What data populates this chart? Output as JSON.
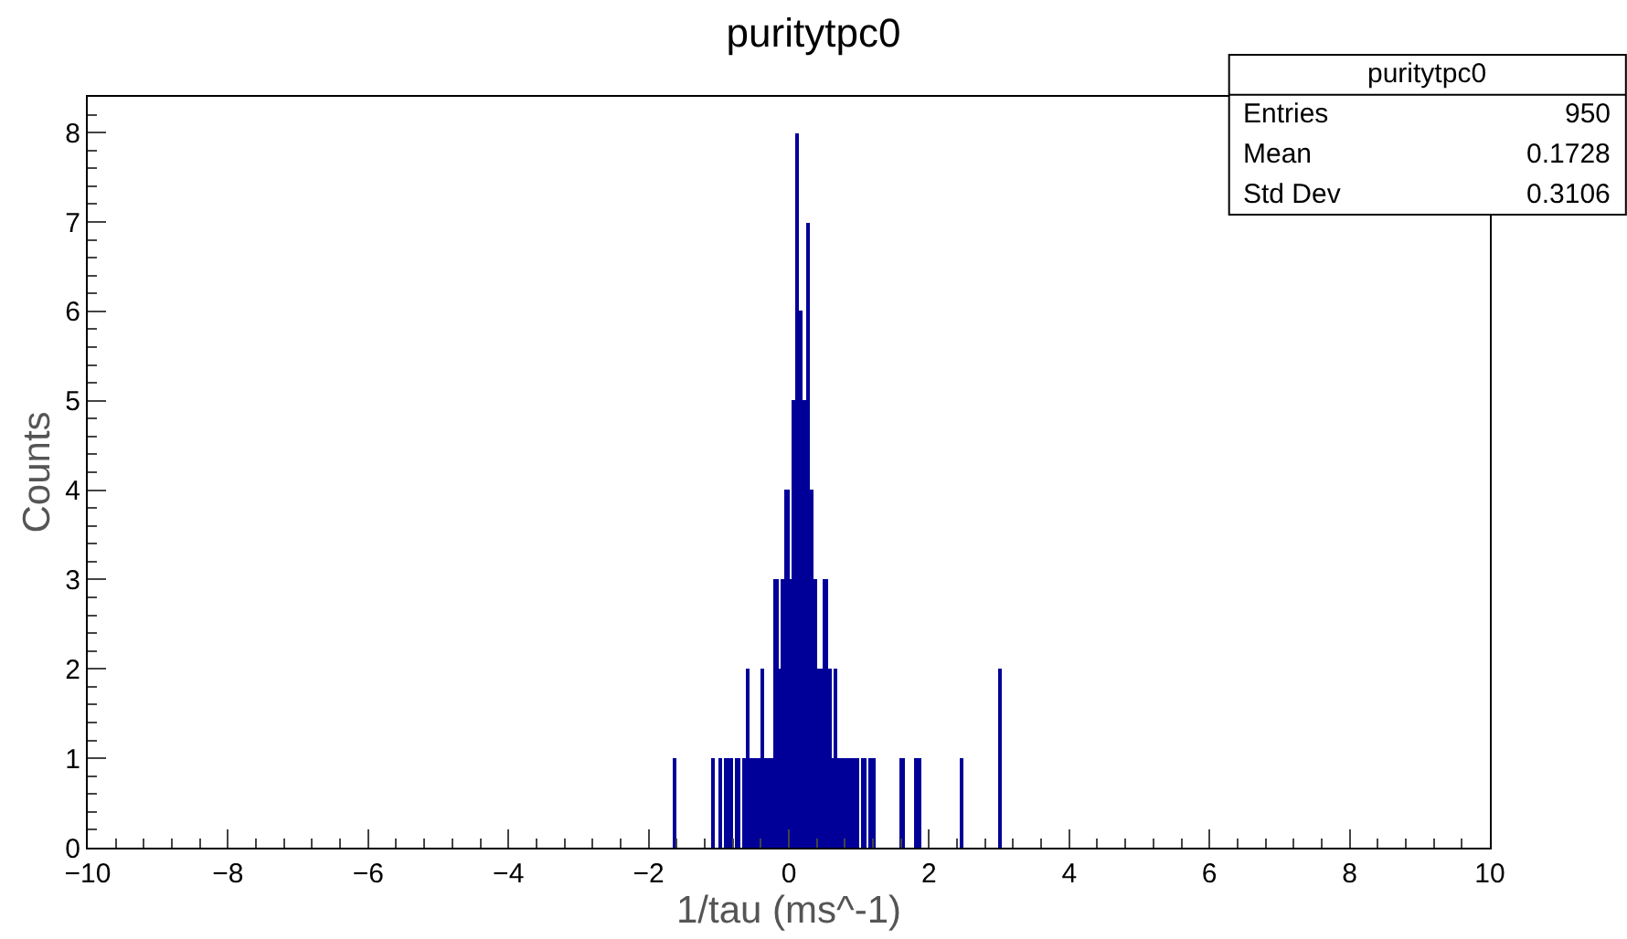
{
  "chart_data": {
    "type": "histogram",
    "title": "puritytpc0",
    "xlabel": "1/tau (ms^-1)",
    "ylabel": "Counts",
    "annotations": [
      "puritytpc0",
      "Entries",
      "950",
      "Mean",
      "0.1728",
      "Std Dev",
      "0.3106"
    ],
    "bins": [
      -1.65,
      -1.6,
      -1.1,
      -1.05,
      -1.0,
      -0.95,
      -0.9,
      -0.85,
      -0.8,
      -0.75,
      -0.7,
      -0.65,
      -0.6,
      -0.55,
      -0.5,
      -0.45,
      -0.4,
      -0.35,
      -0.3,
      -0.25,
      -0.2,
      -0.15,
      -0.1,
      -0.05,
      0,
      0.05,
      0.1,
      0.15,
      0.2,
      0.25,
      0.3,
      0.35,
      0.4,
      0.45,
      0.5,
      0.55,
      0.6,
      0.65,
      0.7,
      0.75,
      0.8,
      0.85,
      0.9,
      0.95,
      1.0,
      1.05,
      1.1,
      1.15,
      1.2,
      1.25,
      1.6,
      1.65,
      1.8,
      1.85,
      1.9,
      2.45,
      2.5,
      3.0,
      3.05
    ],
    "values": [
      1,
      0,
      1,
      0,
      1,
      0,
      1,
      1,
      0,
      1,
      0,
      1,
      2,
      1,
      1,
      1,
      2,
      1,
      1,
      1,
      3,
      2,
      3,
      4,
      3,
      5,
      8,
      6,
      5,
      7,
      4,
      3,
      2,
      2,
      3,
      2,
      1,
      2,
      1,
      1,
      1,
      1,
      1,
      1,
      0,
      1,
      0,
      1,
      1,
      0,
      1,
      0,
      1,
      1,
      0,
      1,
      0,
      2
    ],
    "color": "#000099",
    "xlim": [
      -10,
      10
    ],
    "xticks": [
      {
        "value": -10,
        "label": "−10"
      },
      {
        "value": -8,
        "label": "−8"
      },
      {
        "value": -6,
        "label": "−6"
      },
      {
        "value": -4,
        "label": "−4"
      },
      {
        "value": -2,
        "label": "−2"
      },
      0,
      2,
      4,
      6,
      8,
      10
    ],
    "ylim": [
      0,
      8.4
    ],
    "yticks": [
      0,
      1,
      2,
      3,
      4,
      5,
      6,
      7,
      8
    ]
  }
}
